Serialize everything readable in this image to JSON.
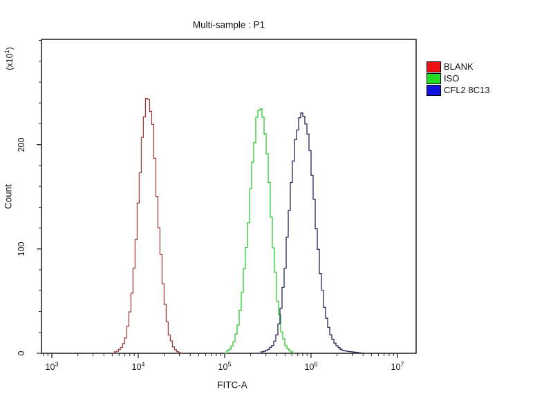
{
  "window": {
    "background": "#ffffff"
  },
  "chart": {
    "title": "Multi-sample : P1",
    "y_unit": {
      "prefix": "(x10",
      "sup": "1",
      "suffix": ")"
    }
  },
  "chart_data": {
    "type": "line",
    "subtype": "flow-cytometry-histogram-overlay",
    "title": "Multi-sample : P1",
    "xlabel": "FITC-A",
    "ylabel": "Count",
    "y_unit_label": "(x10^1)",
    "x_scale": "log10",
    "xlim": [
      760,
      16500000
    ],
    "ylim": [
      0,
      301
    ],
    "grid": false,
    "legend_position": "outside-top-right",
    "x_major_ticks": [
      {
        "base": "10",
        "exp": "3",
        "value": 1000
      },
      {
        "base": "10",
        "exp": "4",
        "value": 10000
      },
      {
        "base": "10",
        "exp": "5",
        "value": 100000
      },
      {
        "base": "10",
        "exp": "6",
        "value": 1000000
      },
      {
        "base": "10",
        "exp": "7",
        "value": 10000000
      }
    ],
    "y_major_ticks": [
      {
        "label": "0",
        "value": 0
      },
      {
        "label": "100",
        "value": 100
      },
      {
        "label": "200",
        "value": 200
      }
    ],
    "y_minor_step": 20,
    "frame_color": "#1a1a1a",
    "series": [
      {
        "name": "BLANK",
        "legend_color": "#ee1111",
        "line_color": "#a23a3a",
        "peak_x": 12600,
        "peak_count": 250,
        "points": [
          [
            5000,
            1
          ],
          [
            5600,
            2
          ],
          [
            6300,
            6
          ],
          [
            7100,
            16
          ],
          [
            7900,
            42
          ],
          [
            8900,
            90
          ],
          [
            10000,
            158
          ],
          [
            11200,
            222
          ],
          [
            12600,
            250
          ],
          [
            14100,
            223
          ],
          [
            15800,
            160
          ],
          [
            17800,
            92
          ],
          [
            20000,
            43
          ],
          [
            22400,
            16
          ],
          [
            25100,
            5
          ],
          [
            28200,
            1
          ],
          [
            31600,
            0
          ]
        ]
      },
      {
        "name": "ISO",
        "legend_color": "#22dd22",
        "line_color": "#2ec82e",
        "peak_x": 251000,
        "peak_count": 238,
        "points": [
          [
            100000,
            1
          ],
          [
            112000,
            4
          ],
          [
            126000,
            11
          ],
          [
            141000,
            28
          ],
          [
            158000,
            62
          ],
          [
            178000,
            112
          ],
          [
            200000,
            170
          ],
          [
            224000,
            219
          ],
          [
            251000,
            238
          ],
          [
            282000,
            220
          ],
          [
            316000,
            168
          ],
          [
            355000,
            105
          ],
          [
            398000,
            52
          ],
          [
            447000,
            20
          ],
          [
            501000,
            6
          ],
          [
            562000,
            2
          ],
          [
            631000,
            0
          ]
        ]
      },
      {
        "name": "CFL2 8C13",
        "legend_color": "#1212e0",
        "line_color": "#23235c",
        "peak_x": 794000,
        "peak_count": 231,
        "points": [
          [
            251000,
            1
          ],
          [
            282000,
            2
          ],
          [
            316000,
            4
          ],
          [
            355000,
            8
          ],
          [
            398000,
            20
          ],
          [
            447000,
            48
          ],
          [
            501000,
            95
          ],
          [
            562000,
            152
          ],
          [
            631000,
            200
          ],
          [
            708000,
            226
          ],
          [
            794000,
            231
          ],
          [
            891000,
            213
          ],
          [
            1000000,
            172
          ],
          [
            1122000,
            121
          ],
          [
            1259000,
            74
          ],
          [
            1413000,
            41
          ],
          [
            1585000,
            21
          ],
          [
            1778000,
            11
          ],
          [
            1995000,
            6
          ],
          [
            2239000,
            3
          ],
          [
            2512000,
            2
          ],
          [
            3162000,
            1
          ],
          [
            3981000,
            0
          ]
        ]
      }
    ]
  }
}
